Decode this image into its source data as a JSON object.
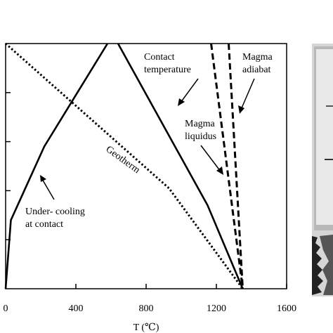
{
  "chart_data": {
    "type": "line",
    "xlabel": "T (℃)",
    "xlim": [
      0,
      1600
    ],
    "x_ticks": [
      "0",
      "400",
      "800",
      "1200",
      "1600"
    ],
    "y_ticks_count": 6,
    "series": [
      {
        "name": "Contact temperature",
        "style": "solid",
        "x": [
          640,
          1150,
          1350
        ],
        "y": [
          0,
          0.66,
          1.0
        ]
      },
      {
        "name": "Under- cooling at contact",
        "style": "solid",
        "x": [
          0,
          30,
          220,
          580
        ],
        "y": [
          1.0,
          0.72,
          0.42,
          0
        ]
      },
      {
        "name": "Geotherm",
        "style": "dotted",
        "x": [
          0,
          930,
          1350
        ],
        "y": [
          0,
          0.59,
          1.0
        ]
      },
      {
        "name": "Magma liquidus",
        "style": "dashed",
        "x": [
          1170,
          1350
        ],
        "y": [
          0,
          1.0
        ]
      },
      {
        "name": "Magma adiabat",
        "style": "dashed",
        "x": [
          1270,
          1350
        ],
        "y": [
          0,
          1.0
        ]
      }
    ],
    "annotations": {
      "contact_temperature": [
        "Contact",
        "temperature"
      ],
      "magma_adiabat": [
        "Magma",
        "adiabat"
      ],
      "magma_liquidus": [
        "Magma",
        "liquidus"
      ],
      "geotherm": "Geotherm",
      "undercooling": [
        "Under- cooling",
        "at contact"
      ]
    }
  }
}
